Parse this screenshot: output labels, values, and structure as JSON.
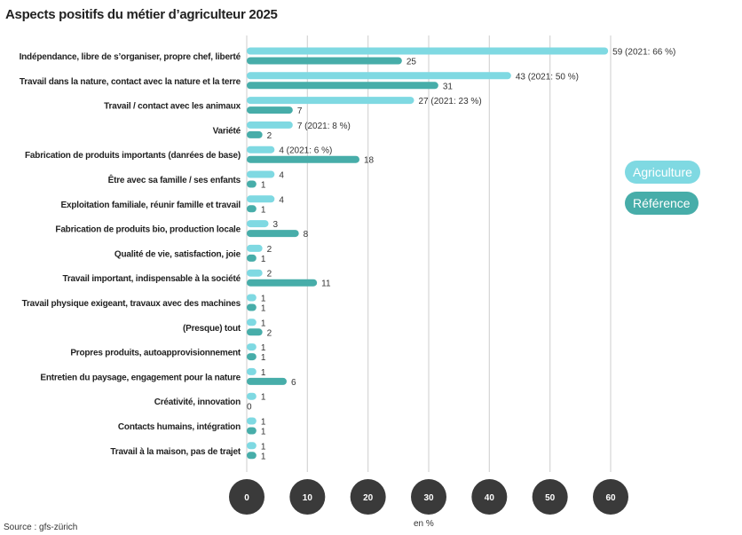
{
  "title": "Aspects positifs du métier d’agriculteur 2025",
  "source": "Source : gfs-zürich",
  "chart_data": {
    "type": "bar",
    "orientation": "horizontal",
    "title": "Aspects positifs du métier d’agriculteur 2025",
    "xlabel": "en %",
    "xlim": [
      0,
      60
    ],
    "xticks": [
      "0",
      "10",
      "20",
      "30",
      "40",
      "50",
      "60"
    ],
    "grid": true,
    "legend_position": "right",
    "categories": [
      "Indépendance, libre de s’organiser, propre chef, liberté",
      "Travail dans la nature, contact avec la nature et la terre",
      "Travail / contact avec les animaux",
      "Variété",
      "Fabrication de produits importants (danrées de base)",
      "Être avec sa famille / ses enfants",
      "Exploitation familiale, réunir famille et travail",
      "Fabrication de produits bio, production locale",
      "Qualité de vie, satisfaction, joie",
      "Travail important, indispensable à la société",
      "Travail physique exigeant, travaux avec des machines",
      "(Presque) tout",
      "Propres produits, autoapprovisionnement",
      "Entretien du paysage, engagement pour la nature",
      "Créativité, innovation",
      "Contacts humains, intégration",
      "Travail à la maison, pas de trajet"
    ],
    "series": [
      {
        "name": "Agriculture",
        "color": "#7fd9e2",
        "values": [
          59,
          43,
          27,
          7,
          4,
          4,
          4,
          3,
          2,
          2,
          1,
          1,
          1,
          1,
          1,
          1,
          1
        ],
        "labels": [
          "59 (2021: 66 %)",
          "43 (2021: 50 %)",
          "27 (2021: 23 %)",
          "7 (2021: 8 %)",
          "4 (2021: 6 %)",
          "4",
          "4",
          "3",
          "2",
          "2",
          "1",
          "1",
          "1",
          "1",
          "1",
          "1",
          "1"
        ]
      },
      {
        "name": "Référence",
        "color": "#47ada9",
        "values": [
          25,
          31,
          7,
          2,
          18,
          1,
          1,
          8,
          1,
          11,
          1,
          2,
          1,
          6,
          0,
          1,
          1
        ],
        "labels": [
          "25",
          "31",
          "7",
          "2",
          "18",
          "1",
          "1",
          "8",
          "1",
          "11",
          "1",
          "2",
          "1",
          "6",
          "0",
          "1",
          "1"
        ]
      }
    ]
  }
}
